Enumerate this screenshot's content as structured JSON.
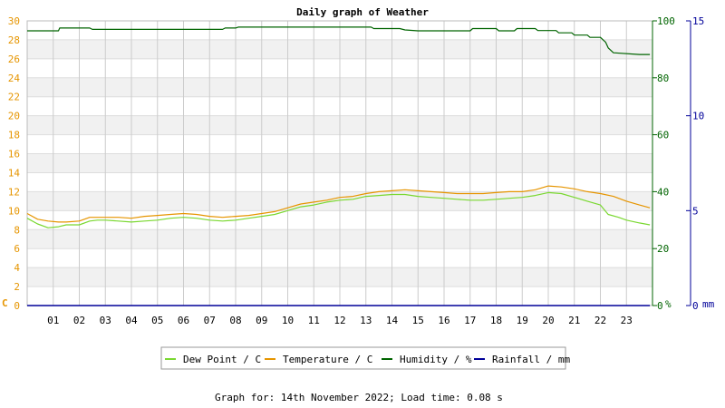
{
  "chart_data": {
    "type": "line",
    "title": "Daily graph of Weather",
    "x_ticks": [
      "01",
      "02",
      "03",
      "04",
      "05",
      "06",
      "07",
      "08",
      "09",
      "10",
      "11",
      "12",
      "13",
      "14",
      "15",
      "16",
      "17",
      "18",
      "19",
      "20",
      "21",
      "22",
      "23"
    ],
    "xlim": [
      0,
      24
    ],
    "axes": {
      "left": {
        "unit_label": "C",
        "lim": [
          0,
          30
        ],
        "ticks": [
          0,
          2,
          4,
          6,
          8,
          10,
          12,
          14,
          16,
          18,
          20,
          22,
          24,
          26,
          28,
          30
        ],
        "color": "#e69500"
      },
      "right1": {
        "unit_label": "%",
        "lim": [
          0,
          100
        ],
        "ticks": [
          0,
          20,
          40,
          60,
          80,
          100
        ],
        "color": "#006400"
      },
      "right2": {
        "unit_label": "mm",
        "lim": [
          0,
          15
        ],
        "ticks": [
          0,
          5,
          10,
          15
        ],
        "color": "#000099"
      }
    },
    "grid": true,
    "legend_position": "bottom",
    "series": [
      {
        "name": "Dew Point / C",
        "axis": "left",
        "color": "#7ad831",
        "x": [
          0,
          0.4,
          0.8,
          1.2,
          1.5,
          2.0,
          2.4,
          2.7,
          3.0,
          3.5,
          4.0,
          4.5,
          5.0,
          5.5,
          6.0,
          6.5,
          7.0,
          7.5,
          8.0,
          8.5,
          9.0,
          9.5,
          10.0,
          10.5,
          11.0,
          11.5,
          12.0,
          12.5,
          13.0,
          13.5,
          14.0,
          14.5,
          15.0,
          15.5,
          16.0,
          16.5,
          17.0,
          17.5,
          18.0,
          18.5,
          19.0,
          19.5,
          20.0,
          20.5,
          21.0,
          21.5,
          22.0,
          22.3,
          22.7,
          23.0,
          23.5,
          23.9
        ],
        "y": [
          9.2,
          8.6,
          8.2,
          8.3,
          8.5,
          8.5,
          8.9,
          9.0,
          9.0,
          8.9,
          8.8,
          8.9,
          9.0,
          9.2,
          9.3,
          9.2,
          9.0,
          8.9,
          9.0,
          9.2,
          9.4,
          9.6,
          10.0,
          10.4,
          10.6,
          10.9,
          11.1,
          11.2,
          11.5,
          11.6,
          11.7,
          11.7,
          11.5,
          11.4,
          11.3,
          11.2,
          11.1,
          11.1,
          11.2,
          11.3,
          11.4,
          11.6,
          11.9,
          11.8,
          11.4,
          11.0,
          10.6,
          9.6,
          9.3,
          9.0,
          8.7,
          8.5
        ]
      },
      {
        "name": "Temperature / C",
        "axis": "left",
        "color": "#e69500",
        "x": [
          0,
          0.4,
          0.8,
          1.2,
          1.5,
          2.0,
          2.4,
          2.7,
          3.0,
          3.5,
          4.0,
          4.5,
          5.0,
          5.5,
          6.0,
          6.5,
          7.0,
          7.5,
          8.0,
          8.5,
          9.0,
          9.5,
          10.0,
          10.5,
          11.0,
          11.5,
          12.0,
          12.5,
          13.0,
          13.5,
          14.0,
          14.5,
          15.0,
          15.5,
          16.0,
          16.5,
          17.0,
          17.5,
          18.0,
          18.5,
          19.0,
          19.5,
          20.0,
          20.5,
          21.0,
          21.5,
          22.0,
          22.5,
          23.0,
          23.5,
          23.9
        ],
        "y": [
          9.7,
          9.1,
          8.9,
          8.8,
          8.8,
          8.9,
          9.3,
          9.3,
          9.3,
          9.3,
          9.2,
          9.4,
          9.5,
          9.6,
          9.7,
          9.6,
          9.4,
          9.3,
          9.4,
          9.5,
          9.7,
          9.9,
          10.3,
          10.7,
          10.9,
          11.1,
          11.4,
          11.5,
          11.8,
          12.0,
          12.1,
          12.2,
          12.1,
          12.0,
          11.9,
          11.8,
          11.8,
          11.8,
          11.9,
          12.0,
          12.0,
          12.2,
          12.6,
          12.5,
          12.3,
          12.0,
          11.8,
          11.5,
          11.0,
          10.6,
          10.3
        ]
      },
      {
        "name": "Humidity / %",
        "axis": "right1",
        "color": "#006400",
        "x": [
          0,
          1.2,
          1.25,
          2.4,
          2.5,
          7.5,
          7.6,
          8.0,
          8.1,
          13.2,
          13.3,
          14.3,
          14.5,
          15.0,
          17.0,
          17.1,
          18.0,
          18.1,
          18.7,
          18.8,
          19.5,
          19.6,
          20.3,
          20.4,
          20.9,
          21.0,
          21.5,
          21.6,
          22.0,
          22.2,
          22.3,
          22.5,
          23.5,
          23.9
        ],
        "y": [
          96.5,
          96.5,
          97.5,
          97.5,
          97.0,
          97.0,
          97.5,
          97.5,
          97.8,
          97.8,
          97.3,
          97.3,
          96.8,
          96.5,
          96.5,
          97.3,
          97.3,
          96.5,
          96.5,
          97.3,
          97.3,
          96.6,
          96.6,
          95.8,
          95.8,
          95.0,
          95.0,
          94.2,
          94.2,
          92.5,
          90.5,
          88.8,
          88.2,
          88.2
        ]
      },
      {
        "name": "Rainfall / mm",
        "axis": "right2",
        "color": "#000099",
        "x": [
          0,
          23.9
        ],
        "y": [
          0,
          0
        ]
      }
    ]
  },
  "footer": "Graph for: 14th November 2022; Load time: 0.08 s"
}
